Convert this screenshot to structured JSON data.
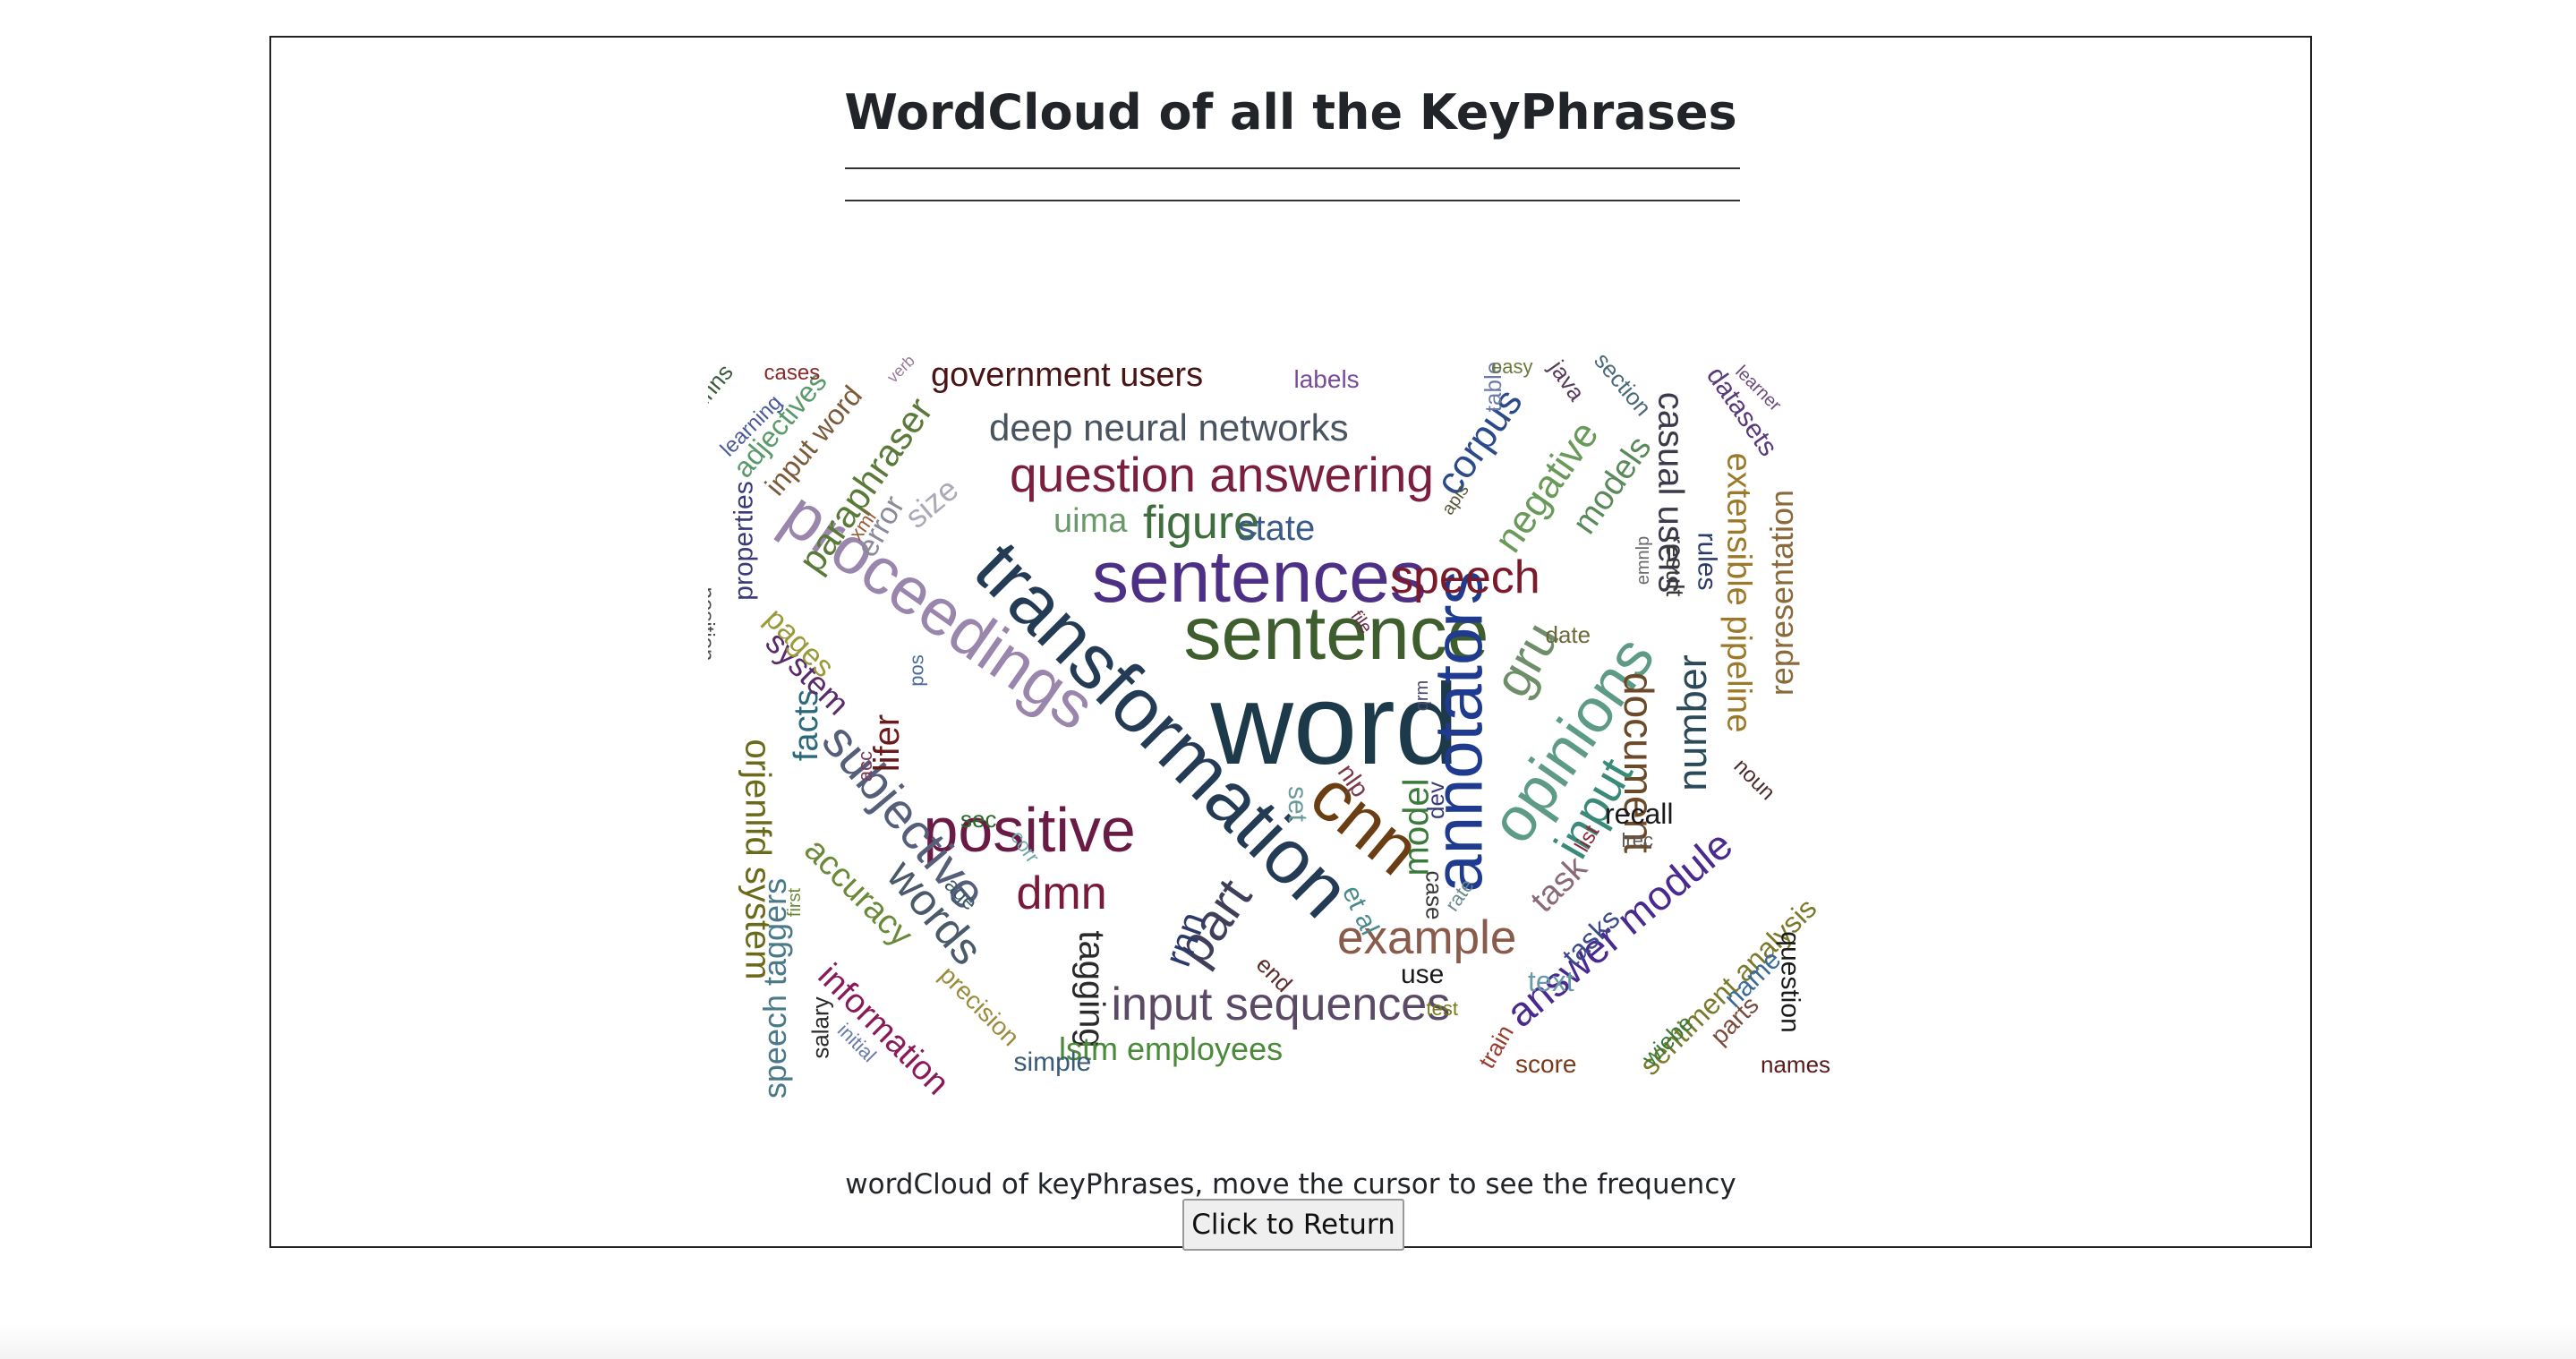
{
  "header": {
    "title": "WordCloud of all the KeyPhrases"
  },
  "caption": "wordCloud of keyPhrases, move the cursor to see the frequency",
  "return_button": {
    "label": "Click to Return"
  },
  "wordcloud": {
    "words": [
      {
        "text": "word",
        "color": "#1d3a4a"
      },
      {
        "text": "transformation",
        "color": "#233b55"
      },
      {
        "text": "sentence",
        "color": "#3e5e2e"
      },
      {
        "text": "sentences",
        "color": "#4e2f86"
      },
      {
        "text": "annotators",
        "color": "#1f3b8f"
      },
      {
        "text": "proceedings",
        "color": "#9a86ad"
      },
      {
        "text": "positive",
        "color": "#6a1b45"
      },
      {
        "text": "cnn",
        "color": "#6b3d12"
      },
      {
        "text": "opinions",
        "color": "#5e9b87"
      },
      {
        "text": "question answering",
        "color": "#7a1f3e"
      },
      {
        "text": "subjective",
        "color": "#565f7a"
      },
      {
        "text": "part",
        "color": "#3f3f59"
      },
      {
        "text": "input sequences",
        "color": "#5b4a66"
      },
      {
        "text": "example",
        "color": "#8a5a4a"
      },
      {
        "text": "answer module",
        "color": "#4a2a8f"
      },
      {
        "text": "document",
        "color": "#6b4a2a"
      },
      {
        "text": "gru",
        "color": "#6e8e6a"
      },
      {
        "text": "speech",
        "color": "#7a1a2a"
      },
      {
        "text": "input",
        "color": "#3a8a7a"
      },
      {
        "text": "deep neural networks",
        "color": "#4a5360"
      },
      {
        "text": "figure",
        "color": "#3e6e3e"
      },
      {
        "text": "extensible pipeline",
        "color": "#9a7a2a"
      },
      {
        "text": "representation",
        "color": "#8a6a3a"
      },
      {
        "text": "number",
        "color": "#2a4a5a"
      },
      {
        "text": "government users",
        "color": "#4a1414"
      },
      {
        "text": "words",
        "color": "#4a5a6a"
      },
      {
        "text": "dmn",
        "color": "#7a1a3a"
      },
      {
        "text": "orjenlfd system",
        "color": "#6a6a1a"
      },
      {
        "text": "speech taggers",
        "color": "#4a7a8a"
      },
      {
        "text": "information",
        "color": "#8a1a5a"
      },
      {
        "text": "accuracy",
        "color": "#6a8a3a"
      },
      {
        "text": "sentiment analysis",
        "color": "#7a7a2a"
      },
      {
        "text": "casual users",
        "color": "#3a3a4a"
      },
      {
        "text": "corpus",
        "color": "#2a4a8a"
      },
      {
        "text": "negative",
        "color": "#6a9a5a"
      },
      {
        "text": "models",
        "color": "#5a8a5a"
      },
      {
        "text": "paraphraser",
        "color": "#5a7a3a"
      },
      {
        "text": "model",
        "color": "#3a7a3a"
      },
      {
        "text": "tagging",
        "color": "#2a2a2a"
      },
      {
        "text": "lstm employees",
        "color": "#4a8a3a"
      },
      {
        "text": "facts",
        "color": "#2a6a7a"
      },
      {
        "text": "lifer",
        "color": "#6a1a1a"
      },
      {
        "text": "task",
        "color": "#8a6a7a"
      },
      {
        "text": "system",
        "color": "#5a2a6a"
      },
      {
        "text": "rules",
        "color": "#2a3a6a"
      },
      {
        "text": "result",
        "color": "#3a3a3a"
      },
      {
        "text": "datasets",
        "color": "#5a3a7a"
      },
      {
        "text": "state",
        "color": "#3a5a8a"
      },
      {
        "text": "uima",
        "color": "#6a9a6a"
      },
      {
        "text": "recall",
        "color": "#1a1a1a"
      },
      {
        "text": "tasks",
        "color": "#3a4a8a"
      },
      {
        "text": "text",
        "color": "#6a9aaa"
      },
      {
        "text": "rnn",
        "color": "#2a3a6a"
      },
      {
        "text": "pages",
        "color": "#9a9a3a"
      },
      {
        "text": "size",
        "color": "#aaaaba"
      },
      {
        "text": "error",
        "color": "#8a8a9a"
      },
      {
        "text": "adjectives",
        "color": "#5a9a6a"
      },
      {
        "text": "input word",
        "color": "#7a5a3a"
      },
      {
        "text": "learning",
        "color": "#4a5a9a"
      },
      {
        "text": "properties",
        "color": "#3a3a7a"
      },
      {
        "text": "position",
        "color": "#4a4a4a"
      },
      {
        "text": "table",
        "color": "#6a7aaa"
      },
      {
        "text": "section",
        "color": "#4a6a7a"
      },
      {
        "text": "name",
        "color": "#3a6a9a"
      },
      {
        "text": "question",
        "color": "#1a1a1a"
      },
      {
        "text": "parts",
        "color": "#7a4a3a"
      },
      {
        "text": "names",
        "color": "#5a1a1a"
      },
      {
        "text": "wiebe",
        "color": "#3a7a3a"
      },
      {
        "text": "score",
        "color": "#7a3a1a"
      },
      {
        "text": "train",
        "color": "#9a3a2a"
      },
      {
        "text": "use",
        "color": "#1a1a1a"
      },
      {
        "text": "simple",
        "color": "#3a5a7a"
      },
      {
        "text": "salary",
        "color": "#2a2a2a"
      },
      {
        "text": "initial",
        "color": "#6a7aaa"
      },
      {
        "text": "precision",
        "color": "#9a8a3a"
      },
      {
        "text": "labels",
        "color": "#7a4a9a"
      },
      {
        "text": "easy",
        "color": "#6a7a3a"
      },
      {
        "text": "java",
        "color": "#5a3a5a"
      },
      {
        "text": "learner",
        "color": "#6a4a7a"
      },
      {
        "text": "dnns",
        "color": "#3a5a3a"
      },
      {
        "text": "cases",
        "color": "#8a2a2a"
      },
      {
        "text": "verb",
        "color": "#9a7a9a"
      },
      {
        "text": "xml",
        "color": "#9a5a3a"
      },
      {
        "text": "file",
        "color": "#6a2a4a"
      },
      {
        "text": "pos",
        "color": "#4a6a9a"
      },
      {
        "text": "qrm",
        "color": "#4a4a6a"
      },
      {
        "text": "apis",
        "color": "#5a5a3a"
      },
      {
        "text": "emnlp",
        "color": "#6a6a6a"
      },
      {
        "text": "date",
        "color": "#6a6a3a"
      },
      {
        "text": "dev",
        "color": "#3a3a7a"
      },
      {
        "text": "acc",
        "color": "#7a3a5a"
      },
      {
        "text": "sec",
        "color": "#2a6a2a"
      },
      {
        "text": "corr",
        "color": "#6aaaaa"
      },
      {
        "text": "nlp",
        "color": "#7a3a4a"
      },
      {
        "text": "set",
        "color": "#6a9a9a"
      },
      {
        "text": "age",
        "color": "#3a5a6a"
      },
      {
        "text": "first",
        "color": "#6a8a3a"
      },
      {
        "text": "end",
        "color": "#5a2a2a"
      },
      {
        "text": "et al",
        "color": "#4a8a8a"
      },
      {
        "text": "case",
        "color": "#3a3a3a"
      },
      {
        "text": "rate",
        "color": "#6a8a8a"
      },
      {
        "text": "list",
        "color": "#8a2a3a"
      },
      {
        "text": "lrec",
        "color": "#5a5a5a"
      },
      {
        "text": "test",
        "color": "#7a7a1a"
      },
      {
        "text": "noun",
        "color": "#4a2a2a"
      }
    ]
  }
}
